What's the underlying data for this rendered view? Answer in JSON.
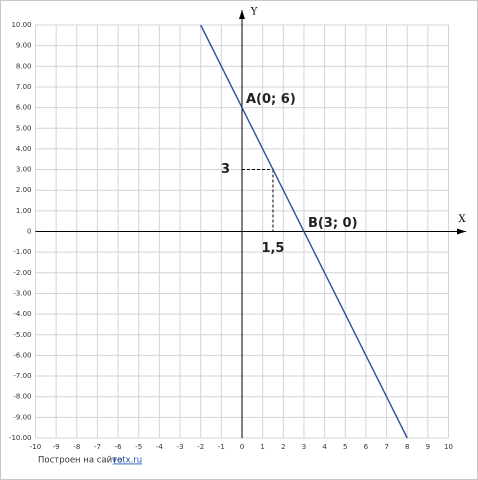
{
  "chart_data": {
    "type": "line",
    "x_label": "X",
    "y_label": "Y",
    "x": [
      -2,
      8
    ],
    "values": [
      10,
      -10
    ],
    "color": "#2e4f9e",
    "xlim": [
      -10,
      10
    ],
    "ylim": [
      -10,
      10
    ],
    "xticks": [
      -10,
      -9,
      -8,
      -7,
      -6,
      -5,
      -4,
      -3,
      -2,
      -1,
      0,
      1,
      2,
      3,
      4,
      5,
      6,
      7,
      8,
      9,
      10
    ],
    "yticks": [
      {
        "value": 10,
        "label": "10.00"
      },
      {
        "value": 9,
        "label": "9.00"
      },
      {
        "value": 8,
        "label": "8.00"
      },
      {
        "value": 7,
        "label": "7.00"
      },
      {
        "value": 6,
        "label": "6.00"
      },
      {
        "value": 5,
        "label": "5.00"
      },
      {
        "value": 4,
        "label": "4.00"
      },
      {
        "value": 3,
        "label": "3.00"
      },
      {
        "value": 2,
        "label": "2.00"
      },
      {
        "value": 1,
        "label": "1.00"
      },
      {
        "value": 0,
        "label": "0"
      },
      {
        "value": -1,
        "label": "-1.00"
      },
      {
        "value": -2,
        "label": "-2.00"
      },
      {
        "value": -3,
        "label": "-3.00"
      },
      {
        "value": -4,
        "label": "-4.00"
      },
      {
        "value": -5,
        "label": "-5.00"
      },
      {
        "value": -6,
        "label": "-6.00"
      },
      {
        "value": -7,
        "label": "-7.00"
      },
      {
        "value": -8,
        "label": "-8.00"
      },
      {
        "value": -9,
        "label": "-9.00"
      },
      {
        "value": -10,
        "label": "-10.00"
      }
    ],
    "grid": true,
    "points": [
      {
        "label": "A(0; 6)",
        "x": 0,
        "y": 6
      },
      {
        "label": "B(3; 0)",
        "x": 3,
        "y": 0
      }
    ],
    "guide": {
      "x": 1.5,
      "y": 3,
      "x_label": "1,5",
      "y_label": "3"
    },
    "footer": {
      "text": "Построен на сайте",
      "link": "yotx.ru"
    }
  }
}
